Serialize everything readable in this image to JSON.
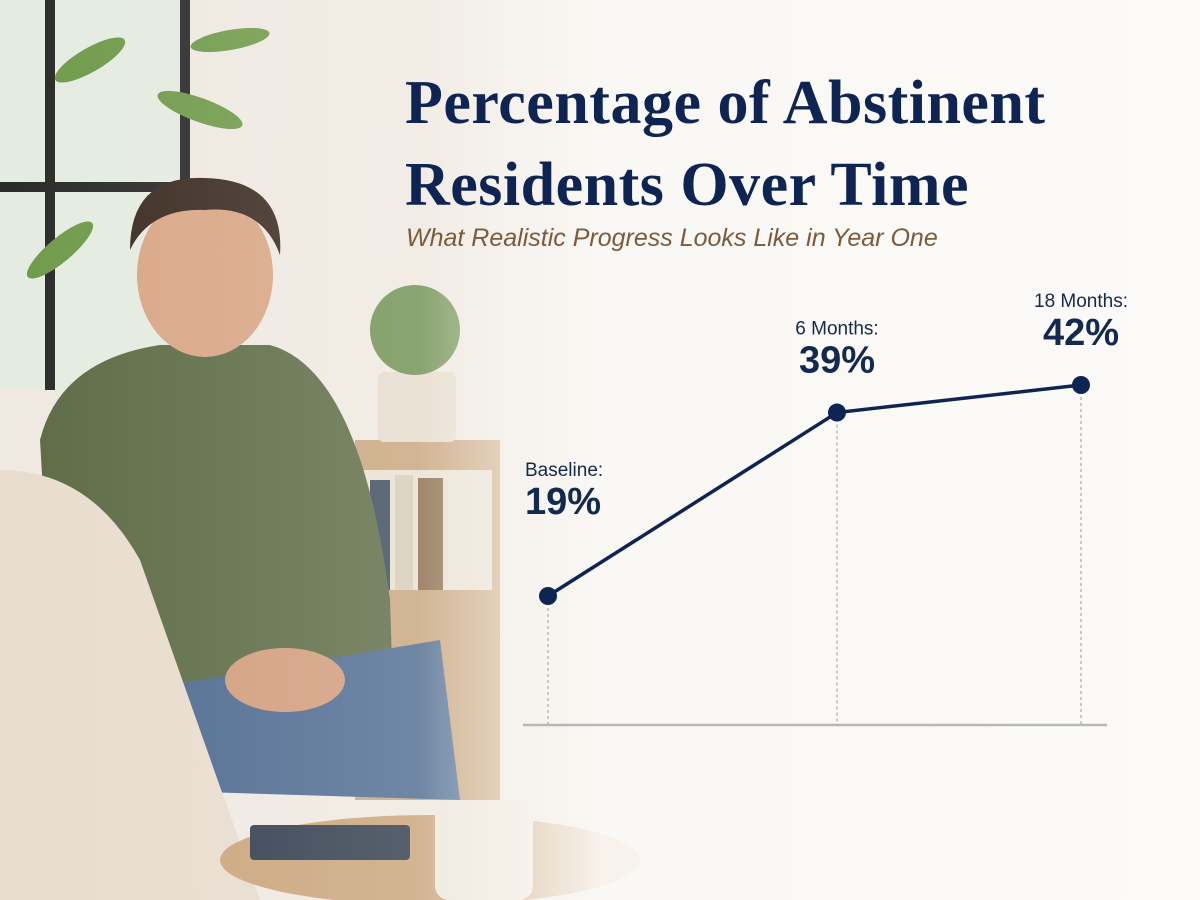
{
  "chart_data": {
    "type": "line",
    "title": "Percentage of Abstinent Residents Over Time",
    "subtitle": "What Realistic Progress Looks Like in Year One",
    "categories": [
      "Baseline:",
      "6 Months:",
      "18 Months:"
    ],
    "series": [
      {
        "name": "Abstinent residents",
        "color": "#0e2452",
        "values": [
          19,
          39,
          42
        ],
        "value_labels": [
          "19%",
          "39%",
          "42%"
        ]
      }
    ]
  }
}
